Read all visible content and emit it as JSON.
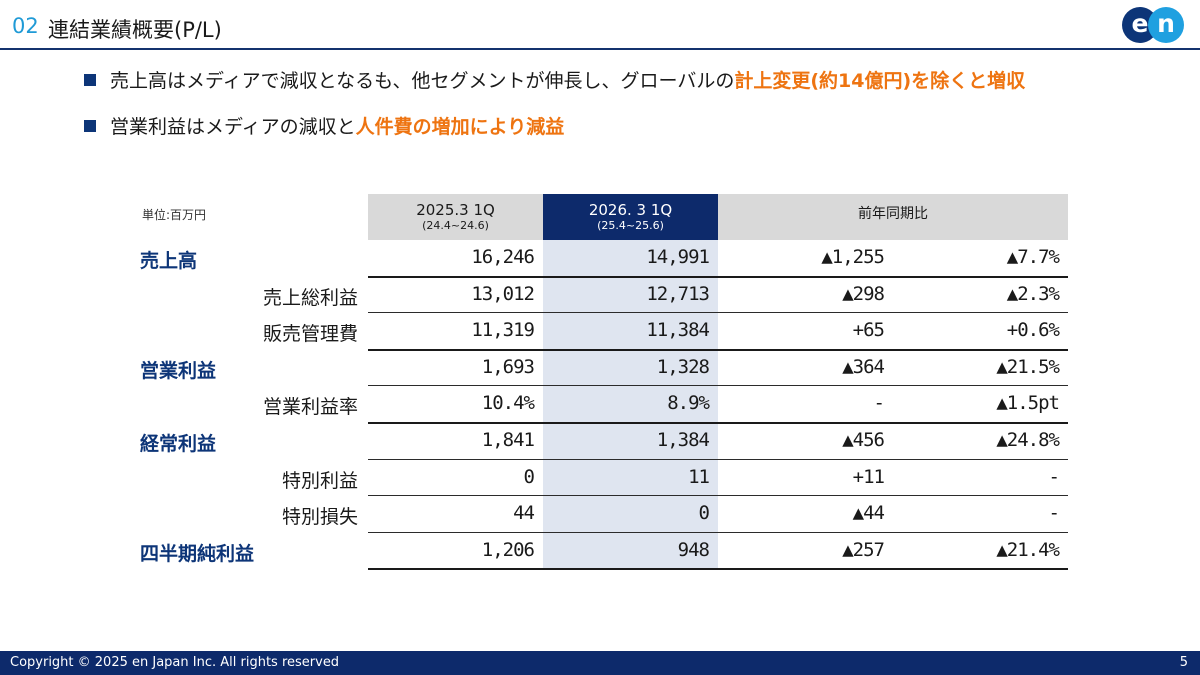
{
  "header": {
    "section_number": "02",
    "section_title": "連結業績概要(P/L)",
    "logo_text": [
      "e",
      "n"
    ]
  },
  "bullets": [
    {
      "text": "売上高はメディアで減収となるも、他セグメントが伸長し、グローバルの",
      "highlight": "計上変更(約14億円)を除くと増収"
    },
    {
      "text": "営業利益はメディアの減収と",
      "highlight": "人件費の増加により減益"
    }
  ],
  "table": {
    "unit_label": "単位:百万円",
    "columns": [
      {
        "label": "2025.3 1Q",
        "sub": "(24.4~24.6)"
      },
      {
        "label": "2026. 3 1Q",
        "sub": "(25.4~25.6)"
      },
      {
        "label": "前年同期比"
      }
    ],
    "rows": [
      {
        "label": "売上高",
        "type": "main",
        "values": [
          "16,246",
          "14,991",
          "▲1,255",
          "▲7.7%"
        ]
      },
      {
        "label": "売上総利益",
        "type": "sub",
        "values": [
          "13,012",
          "12,713",
          "▲298",
          "▲2.3%"
        ]
      },
      {
        "label": "販売管理費",
        "type": "sub",
        "values": [
          "11,319",
          "11,384",
          "+65",
          "+0.6%"
        ]
      },
      {
        "label": "営業利益",
        "type": "main",
        "values": [
          "1,693",
          "1,328",
          "▲364",
          "▲21.5%"
        ]
      },
      {
        "label": "営業利益率",
        "type": "sub",
        "values": [
          "10.4%",
          "8.9%",
          "-",
          "▲1.5pt"
        ]
      },
      {
        "label": "経常利益",
        "type": "main",
        "values": [
          "1,841",
          "1,384",
          "▲456",
          "▲24.8%"
        ]
      },
      {
        "label": "特別利益",
        "type": "sub",
        "values": [
          "0",
          "11",
          "+11",
          "-"
        ]
      },
      {
        "label": "特別損失",
        "type": "sub",
        "values": [
          "44",
          "0",
          "▲44",
          "-"
        ]
      },
      {
        "label": "四半期純利益",
        "type": "main",
        "values": [
          "1,206",
          "948",
          "▲257",
          "▲21.4%"
        ]
      }
    ]
  },
  "footer": {
    "copyright": "Copyright © 2025 en Japan Inc. All rights reserved",
    "page_number": "5"
  },
  "colors": {
    "navy": "#0d2a6b",
    "accent_blue": "#1f9ad6",
    "highlight_orange": "#ee7411"
  }
}
